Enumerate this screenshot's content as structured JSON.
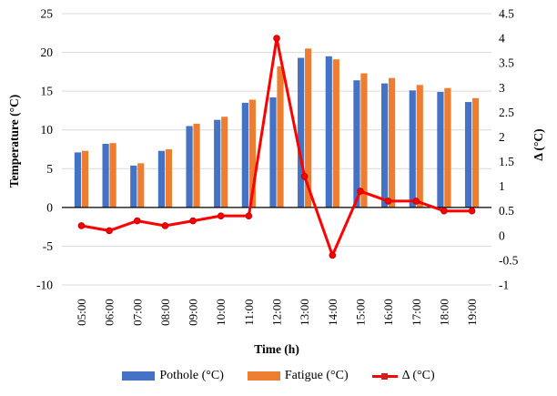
{
  "chart": {
    "background": "#ffffff",
    "gridline_color": "#d9d9d9",
    "axis_line_color": "#000000",
    "left_axis": {
      "title": "Temperature (°C)",
      "ticks": [
        "25",
        "20",
        "15",
        "10",
        "5",
        "0",
        "-5",
        "-10"
      ],
      "tick_values": [
        25,
        20,
        15,
        10,
        5,
        0,
        -5,
        -10
      ]
    },
    "right_axis": {
      "title": "Δ (°C)",
      "ticks": [
        "4.5",
        "4",
        "3.5",
        "3",
        "2.5",
        "2",
        "1.5",
        "1",
        "0.5",
        "0",
        "-0.5",
        "-1"
      ],
      "tick_values": [
        4.5,
        4,
        3.5,
        3,
        2.5,
        2,
        1.5,
        1,
        0.5,
        0,
        -0.5,
        -1
      ]
    },
    "x_axis": {
      "title": "Time (h)"
    },
    "legend": [
      {
        "label": "Pothole (°C)",
        "color": "#4472c4",
        "type": "bar"
      },
      {
        "label": "Fatigue (°C)",
        "color": "#ed7d31",
        "type": "bar"
      },
      {
        "label": "Δ (°C)",
        "color": "#ff0000",
        "marker_color": "#d02020",
        "type": "line"
      }
    ]
  },
  "chart_data": {
    "type": "bar",
    "subtype": "grouped-bars-with-line-overlay",
    "title": "",
    "xlabel": "Time (h)",
    "ylabel_left": "Temperature (°C)",
    "ylabel_right": "Δ (°C)",
    "ylim_left": [
      -10,
      25
    ],
    "ylim_right": [
      -1,
      4.5
    ],
    "grid": "horizontal",
    "legend_position": "bottom",
    "categories": [
      "05:00",
      "06:00",
      "07:00",
      "08:00",
      "09:00",
      "10:00",
      "11:00",
      "12:00",
      "13:00",
      "14:00",
      "15:00",
      "16:00",
      "17:00",
      "18:00",
      "19:00"
    ],
    "series": [
      {
        "name": "Pothole (°C)",
        "type": "bar",
        "axis": "left",
        "color": "#4472c4",
        "values": [
          7.1,
          8.2,
          5.4,
          7.3,
          10.5,
          11.3,
          13.5,
          14.2,
          19.3,
          19.5,
          16.4,
          16.0,
          15.1,
          14.9,
          13.6
        ]
      },
      {
        "name": "Fatigue (°C)",
        "type": "bar",
        "axis": "left",
        "color": "#ed7d31",
        "values": [
          7.3,
          8.3,
          5.7,
          7.5,
          10.8,
          11.7,
          13.9,
          18.2,
          20.5,
          19.1,
          17.3,
          16.7,
          15.8,
          15.4,
          14.1
        ]
      },
      {
        "name": "Δ (°C)",
        "type": "line",
        "axis": "right",
        "color": "#ff0000",
        "marker": "circle",
        "values": [
          0.2,
          0.1,
          0.3,
          0.2,
          0.3,
          0.4,
          0.4,
          4.0,
          1.2,
          -0.4,
          0.9,
          0.7,
          0.7,
          0.5,
          0.5
        ]
      }
    ]
  }
}
